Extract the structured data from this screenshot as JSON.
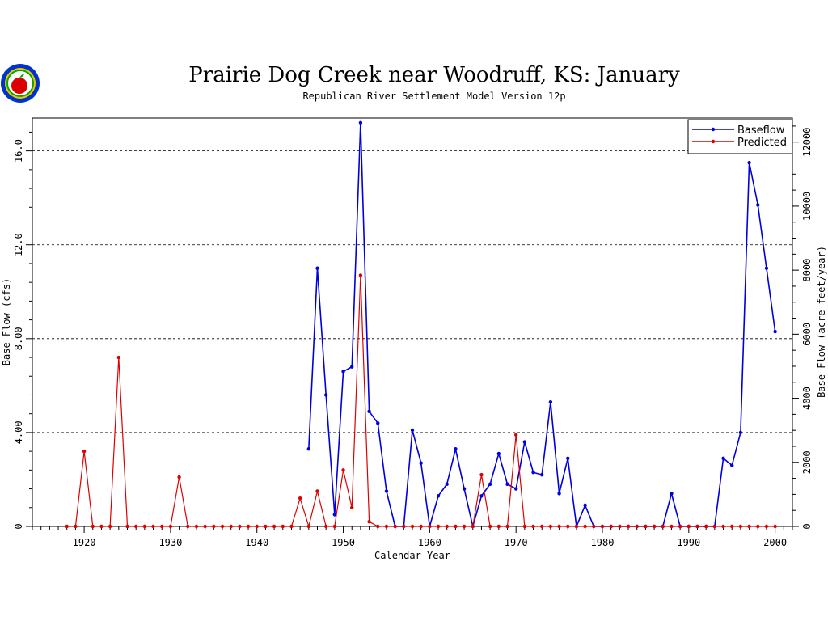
{
  "chart_data": {
    "type": "line",
    "title": "Prairie Dog Creek near Woodruff, KS: January",
    "subtitle": "Republican River Settlement Model Version 12p",
    "xlabel": "Calendar Year",
    "ylabel": "Base Flow (cfs)",
    "y2label": "Base Flow (acre-feet/year)",
    "xlim": [
      1914,
      2002
    ],
    "ylim": [
      0,
      17.4
    ],
    "y2lim": [
      0,
      12750
    ],
    "x_ticks": [
      1920,
      1930,
      1940,
      1950,
      1960,
      1970,
      1980,
      1990,
      2000
    ],
    "y_ticks": [
      0,
      4.0,
      8.0,
      12.0,
      16.0
    ],
    "y_tick_labels": [
      "0",
      "4.00",
      "8.00",
      "12.0",
      "16.0"
    ],
    "y2_ticks": [
      0,
      2000,
      4000,
      6000,
      8000,
      10000,
      12000
    ],
    "y2_tick_labels": [
      "0",
      "2000",
      "4000",
      "6000",
      "8000",
      "10000",
      "12000"
    ],
    "grid": "horizontal dashed at major y ticks",
    "legend_position": "top-right",
    "series": [
      {
        "name": "Baseflow",
        "color": "#0000dd",
        "x": [
          1946,
          1947,
          1948,
          1949,
          1950,
          1951,
          1952,
          1953,
          1954,
          1955,
          1956,
          1957,
          1958,
          1959,
          1960,
          1961,
          1962,
          1963,
          1964,
          1965,
          1966,
          1967,
          1968,
          1969,
          1970,
          1971,
          1972,
          1973,
          1974,
          1975,
          1976,
          1977,
          1978,
          1979,
          1980,
          1981,
          1982,
          1983,
          1984,
          1985,
          1986,
          1987,
          1988,
          1989,
          1990,
          1991,
          1992,
          1993,
          1994,
          1995,
          1996,
          1997,
          1998,
          1999,
          2000
        ],
        "values": [
          3.3,
          11.0,
          5.6,
          0.5,
          6.6,
          6.8,
          17.2,
          4.9,
          4.4,
          1.5,
          0.0,
          0.0,
          4.1,
          2.7,
          0.0,
          1.3,
          1.8,
          3.3,
          1.6,
          0.0,
          1.3,
          1.8,
          3.1,
          1.8,
          1.6,
          3.6,
          2.3,
          2.2,
          5.3,
          1.4,
          2.9,
          0.0,
          0.9,
          0.0,
          0.0,
          0.0,
          0.0,
          0.0,
          0.0,
          0.0,
          0.0,
          0.0,
          1.4,
          0.0,
          0.0,
          0.0,
          0.0,
          0.0,
          2.9,
          2.6,
          4.0,
          15.5,
          13.7,
          11.0,
          8.3
        ]
      },
      {
        "name": "Predicted",
        "color": "#dd0000",
        "x": [
          1918,
          1919,
          1920,
          1921,
          1922,
          1923,
          1924,
          1925,
          1926,
          1927,
          1928,
          1929,
          1930,
          1931,
          1932,
          1933,
          1934,
          1935,
          1936,
          1937,
          1938,
          1939,
          1940,
          1941,
          1942,
          1943,
          1944,
          1945,
          1946,
          1947,
          1948,
          1949,
          1950,
          1951,
          1952,
          1953,
          1954,
          1955,
          1956,
          1957,
          1958,
          1959,
          1960,
          1961,
          1962,
          1963,
          1964,
          1965,
          1966,
          1967,
          1968,
          1969,
          1970,
          1971,
          1972,
          1973,
          1974,
          1975,
          1976,
          1977,
          1978,
          1979,
          1980,
          1981,
          1982,
          1983,
          1984,
          1985,
          1986,
          1987,
          1988,
          1989,
          1990,
          1991,
          1992,
          1993,
          1994,
          1995,
          1996,
          1997,
          1998,
          1999,
          2000
        ],
        "values": [
          0,
          0,
          3.2,
          0,
          0,
          0,
          7.2,
          0,
          0,
          0,
          0,
          0,
          0,
          2.1,
          0,
          0,
          0,
          0,
          0,
          0,
          0,
          0,
          0,
          0,
          0,
          0,
          0,
          1.2,
          0,
          1.5,
          0,
          0,
          2.4,
          0.8,
          10.7,
          0.2,
          0,
          0,
          0,
          0,
          0,
          0,
          0,
          0,
          0,
          0,
          0,
          0,
          2.2,
          0,
          0,
          0,
          3.9,
          0,
          0,
          0,
          0,
          0,
          0,
          0,
          0,
          0,
          0,
          0,
          0,
          0,
          0,
          0,
          0,
          0,
          0,
          0,
          0,
          0,
          0,
          0,
          0,
          0,
          0,
          0,
          0,
          0,
          0
        ]
      }
    ]
  },
  "logo": {
    "name": "agency-seal-logo",
    "colors": [
      "#f5c400",
      "#0033cc",
      "#dd0000",
      "#00aa00"
    ]
  }
}
